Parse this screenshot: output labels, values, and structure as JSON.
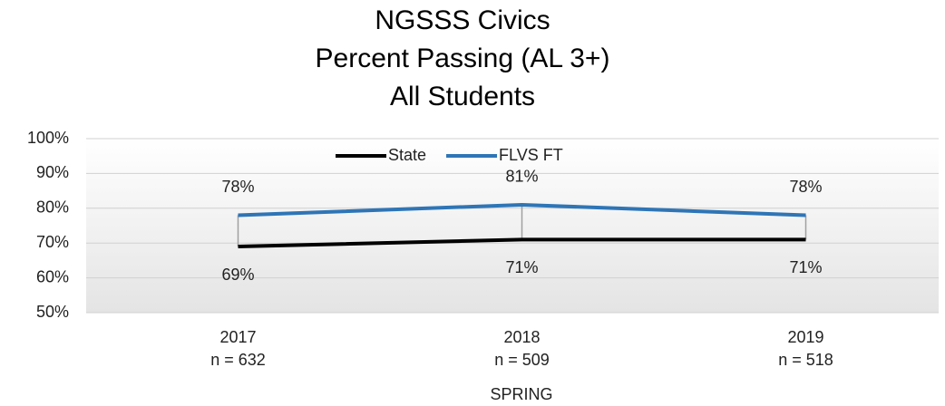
{
  "chart_data": {
    "type": "line",
    "title": [
      "NGSSS Civics",
      "Percent Passing (AL 3+)",
      "All Students"
    ],
    "x_label": "SPRING",
    "categories": [
      "2017",
      "2018",
      "2019"
    ],
    "category_sublabels": [
      "n = 632",
      "n = 509",
      "n = 518"
    ],
    "series": [
      {
        "name": "State",
        "color": "#000000",
        "values": [
          69,
          71,
          71
        ],
        "value_labels": [
          "69%",
          "71%",
          "71%"
        ]
      },
      {
        "name": "FLVS FT",
        "color": "#2e75b6",
        "values": [
          78,
          81,
          78
        ],
        "value_labels": [
          "78%",
          "81%",
          "78%"
        ]
      }
    ],
    "ylim": [
      50,
      100
    ],
    "yticks": [
      {
        "value": 50,
        "label": "50%"
      },
      {
        "value": 60,
        "label": "60%"
      },
      {
        "value": 70,
        "label": "70%"
      },
      {
        "value": 80,
        "label": "80%"
      },
      {
        "value": 90,
        "label": "90%"
      },
      {
        "value": 100,
        "label": "100%"
      }
    ],
    "grid": true,
    "legend": "top"
  }
}
